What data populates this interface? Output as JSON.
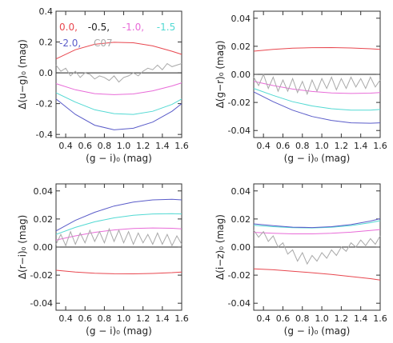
{
  "chart_data": [
    {
      "type": "line",
      "ylabel": "Δ(u−g)₀ (mag)",
      "xlabel": "(g − i)₀ (mag)",
      "xlim": [
        0.3,
        1.6
      ],
      "ylim": [
        -0.42,
        0.4
      ],
      "x_ticks": [
        "0.4",
        "0.6",
        "0.8",
        "1.0",
        "1.2",
        "1.4",
        "1.6"
      ],
      "y_ticks": [
        "0.4",
        "0.2",
        "0.0",
        "-0.2",
        "-0.4"
      ],
      "legend": {
        "row1": [
          {
            "text": "0.0,",
            "color": "#e8474f"
          },
          {
            "text": "-0.5,",
            "color": "#222222"
          },
          {
            "text": "-1.0,",
            "color": "#e86bd8"
          },
          {
            "text": "-1.5",
            "color": "#52d9d3"
          }
        ],
        "row2": [
          {
            "text": "-2.0,",
            "color": "#5a5cc9"
          },
          {
            "text": "C07",
            "color": "#a9a9a9"
          }
        ]
      },
      "series": [
        {
          "color": "#e8474f",
          "x": [
            0.3,
            0.5,
            0.7,
            0.9,
            1.1,
            1.3,
            1.5,
            1.6
          ],
          "y": [
            0.09,
            0.15,
            0.185,
            0.198,
            0.195,
            0.175,
            0.14,
            0.12
          ]
        },
        {
          "color": "#e86bd8",
          "x": [
            0.3,
            0.5,
            0.7,
            0.9,
            1.1,
            1.3,
            1.5,
            1.6
          ],
          "y": [
            -0.07,
            -0.11,
            -0.135,
            -0.142,
            -0.137,
            -0.117,
            -0.085,
            -0.065
          ]
        },
        {
          "color": "#52d9d3",
          "x": [
            0.3,
            0.5,
            0.7,
            0.9,
            1.1,
            1.3,
            1.5,
            1.6
          ],
          "y": [
            -0.13,
            -0.19,
            -0.24,
            -0.265,
            -0.27,
            -0.25,
            -0.205,
            -0.17
          ]
        },
        {
          "color": "#5a5cc9",
          "x": [
            0.3,
            0.5,
            0.7,
            0.9,
            1.1,
            1.3,
            1.5,
            1.6
          ],
          "y": [
            -0.17,
            -0.27,
            -0.34,
            -0.37,
            -0.36,
            -0.32,
            -0.25,
            -0.2
          ]
        },
        {
          "color": "#a9a9a9",
          "x": [
            0.3,
            0.35,
            0.4,
            0.45,
            0.5,
            0.55,
            0.6,
            0.65,
            0.7,
            0.75,
            0.8,
            0.85,
            0.9,
            0.95,
            1.0,
            1.05,
            1.1,
            1.15,
            1.2,
            1.25,
            1.3,
            1.35,
            1.4,
            1.45,
            1.5,
            1.55,
            1.6
          ],
          "y": [
            0.05,
            0.01,
            0.03,
            -0.02,
            0.01,
            -0.03,
            0.0,
            -0.01,
            -0.04,
            -0.02,
            -0.03,
            -0.05,
            -0.02,
            -0.06,
            -0.03,
            -0.02,
            0.0,
            -0.02,
            0.01,
            0.03,
            0.02,
            0.05,
            0.02,
            0.06,
            0.04,
            0.05,
            0.06
          ]
        }
      ]
    },
    {
      "type": "line",
      "ylabel": "Δ(g−r)₀ (mag)",
      "xlabel": "(g − i)₀ (mag)",
      "xlim": [
        0.3,
        1.6
      ],
      "ylim": [
        -0.045,
        0.045
      ],
      "x_ticks": [
        "0.4",
        "0.6",
        "0.8",
        "1.0",
        "1.2",
        "1.4",
        "1.6"
      ],
      "y_ticks": [
        "0.04",
        "0.02",
        "0.00",
        "-0.02",
        "-0.04"
      ],
      "series": [
        {
          "color": "#e8474f",
          "x": [
            0.3,
            0.5,
            0.7,
            0.9,
            1.1,
            1.3,
            1.5,
            1.6
          ],
          "y": [
            0.0165,
            0.0178,
            0.0186,
            0.019,
            0.0191,
            0.0188,
            0.0182,
            0.0178
          ]
        },
        {
          "color": "#e86bd8",
          "x": [
            0.3,
            0.5,
            0.7,
            0.9,
            1.1,
            1.3,
            1.5,
            1.6
          ],
          "y": [
            -0.005,
            -0.008,
            -0.0105,
            -0.0122,
            -0.0132,
            -0.0136,
            -0.0134,
            -0.013
          ]
        },
        {
          "color": "#52d9d3",
          "x": [
            0.3,
            0.5,
            0.7,
            0.9,
            1.1,
            1.3,
            1.5,
            1.6
          ],
          "y": [
            -0.01,
            -0.015,
            -0.0195,
            -0.0225,
            -0.0245,
            -0.0255,
            -0.0255,
            -0.025
          ]
        },
        {
          "color": "#5a5cc9",
          "x": [
            0.3,
            0.5,
            0.7,
            0.9,
            1.1,
            1.3,
            1.5,
            1.6
          ],
          "y": [
            -0.0125,
            -0.0195,
            -0.0255,
            -0.03,
            -0.0328,
            -0.0345,
            -0.0348,
            -0.0345
          ]
        },
        {
          "color": "#a9a9a9",
          "x": [
            0.3,
            0.35,
            0.4,
            0.45,
            0.5,
            0.55,
            0.6,
            0.65,
            0.7,
            0.75,
            0.8,
            0.85,
            0.9,
            0.95,
            1.0,
            1.05,
            1.1,
            1.15,
            1.2,
            1.25,
            1.3,
            1.35,
            1.4,
            1.45,
            1.5,
            1.55,
            1.6
          ],
          "y": [
            -0.002,
            -0.008,
            0.0,
            -0.01,
            -0.002,
            -0.012,
            -0.004,
            -0.012,
            -0.003,
            -0.013,
            -0.005,
            -0.014,
            -0.004,
            -0.012,
            -0.003,
            -0.01,
            -0.002,
            -0.011,
            -0.003,
            -0.01,
            -0.002,
            -0.009,
            -0.003,
            -0.01,
            -0.002,
            -0.009,
            -0.004
          ]
        }
      ]
    },
    {
      "type": "line",
      "ylabel": "Δ(r−i)₀ (mag)",
      "xlabel": "(g − i)₀ (mag)",
      "xlim": [
        0.3,
        1.6
      ],
      "ylim": [
        -0.045,
        0.045
      ],
      "x_ticks": [
        "0.4",
        "0.6",
        "0.8",
        "1.0",
        "1.2",
        "1.4",
        "1.6"
      ],
      "y_ticks": [
        "0.04",
        "0.02",
        "0.00",
        "-0.02",
        "-0.04"
      ],
      "series": [
        {
          "color": "#e8474f",
          "x": [
            0.3,
            0.5,
            0.7,
            0.9,
            1.1,
            1.3,
            1.5,
            1.6
          ],
          "y": [
            -0.0165,
            -0.0178,
            -0.0186,
            -0.019,
            -0.0191,
            -0.0188,
            -0.0182,
            -0.0178
          ]
        },
        {
          "color": "#e86bd8",
          "x": [
            0.3,
            0.5,
            0.7,
            0.9,
            1.1,
            1.3,
            1.5,
            1.6
          ],
          "y": [
            0.005,
            0.008,
            0.0105,
            0.0122,
            0.0132,
            0.0136,
            0.0134,
            0.013
          ]
        },
        {
          "color": "#52d9d3",
          "x": [
            0.3,
            0.5,
            0.7,
            0.9,
            1.1,
            1.3,
            1.5,
            1.6
          ],
          "y": [
            0.009,
            0.014,
            0.018,
            0.0208,
            0.0226,
            0.0236,
            0.0238,
            0.0236
          ]
        },
        {
          "color": "#5a5cc9",
          "x": [
            0.3,
            0.5,
            0.7,
            0.9,
            1.1,
            1.3,
            1.5,
            1.6
          ],
          "y": [
            0.0115,
            0.019,
            0.0248,
            0.0292,
            0.032,
            0.0336,
            0.034,
            0.0336
          ]
        },
        {
          "color": "#a9a9a9",
          "x": [
            0.3,
            0.35,
            0.4,
            0.45,
            0.5,
            0.55,
            0.6,
            0.65,
            0.7,
            0.75,
            0.8,
            0.85,
            0.9,
            0.95,
            1.0,
            1.05,
            1.1,
            1.15,
            1.2,
            1.25,
            1.3,
            1.35,
            1.4,
            1.45,
            1.5,
            1.55,
            1.6
          ],
          "y": [
            0.002,
            0.009,
            0.001,
            0.011,
            0.002,
            0.01,
            0.003,
            0.012,
            0.004,
            0.011,
            0.003,
            0.013,
            0.004,
            0.012,
            0.003,
            0.011,
            0.002,
            0.01,
            0.003,
            0.009,
            0.002,
            0.01,
            0.002,
            0.009,
            0.001,
            0.008,
            0.002
          ]
        }
      ]
    },
    {
      "type": "line",
      "ylabel": "Δ(i−z)₀ (mag)",
      "xlabel": "(g − i)₀ (mag)",
      "xlim": [
        0.3,
        1.6
      ],
      "ylim": [
        -0.045,
        0.045
      ],
      "x_ticks": [
        "0.4",
        "0.6",
        "0.8",
        "1.0",
        "1.2",
        "1.4",
        "1.6"
      ],
      "y_ticks": [
        "0.04",
        "0.02",
        "0.00",
        "-0.02",
        "-0.04"
      ],
      "series": [
        {
          "color": "#e8474f",
          "x": [
            0.3,
            0.5,
            0.7,
            0.9,
            1.1,
            1.3,
            1.5,
            1.6
          ],
          "y": [
            -0.0155,
            -0.0162,
            -0.0172,
            -0.0183,
            -0.0195,
            -0.021,
            -0.0225,
            -0.0235
          ]
        },
        {
          "color": "#e86bd8",
          "x": [
            0.3,
            0.5,
            0.7,
            0.9,
            1.1,
            1.3,
            1.5,
            1.6
          ],
          "y": [
            0.0105,
            0.0098,
            0.0094,
            0.0094,
            0.0098,
            0.0106,
            0.0118,
            0.0125
          ]
        },
        {
          "color": "#52d9d3",
          "x": [
            0.3,
            0.5,
            0.7,
            0.9,
            1.1,
            1.3,
            1.5,
            1.6
          ],
          "y": [
            0.0155,
            0.0145,
            0.0138,
            0.0136,
            0.0141,
            0.0153,
            0.0174,
            0.0188
          ]
        },
        {
          "color": "#5a5cc9",
          "x": [
            0.3,
            0.5,
            0.7,
            0.9,
            1.1,
            1.3,
            1.5,
            1.6
          ],
          "y": [
            0.0165,
            0.0152,
            0.0142,
            0.0139,
            0.0145,
            0.016,
            0.0185,
            0.0202
          ]
        },
        {
          "color": "#a9a9a9",
          "x": [
            0.3,
            0.35,
            0.4,
            0.45,
            0.5,
            0.55,
            0.6,
            0.65,
            0.7,
            0.75,
            0.8,
            0.85,
            0.9,
            0.95,
            1.0,
            1.05,
            1.1,
            1.15,
            1.2,
            1.25,
            1.3,
            1.35,
            1.4,
            1.45,
            1.5,
            1.55,
            1.6
          ],
          "y": [
            0.012,
            0.007,
            0.011,
            0.004,
            0.008,
            0.0,
            0.003,
            -0.005,
            -0.002,
            -0.01,
            -0.004,
            -0.012,
            -0.006,
            -0.01,
            -0.004,
            -0.008,
            -0.002,
            -0.006,
            0.0,
            -0.003,
            0.003,
            0.0,
            0.005,
            0.001,
            0.006,
            0.002,
            0.008
          ]
        }
      ]
    }
  ]
}
